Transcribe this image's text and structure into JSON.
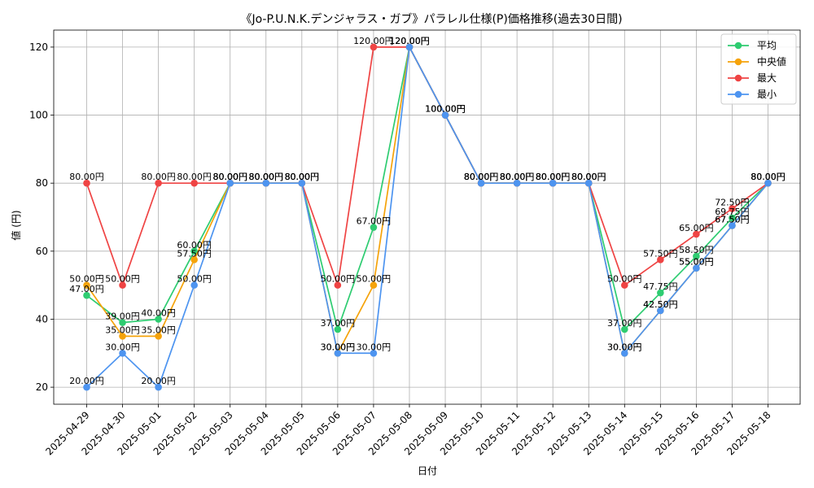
{
  "chart_data": {
    "type": "line",
    "title": "《Jo-P.U.N.K.デンジャラス・ガブ》パラレル仕様(P)価格推移(過去30日間)",
    "xlabel": "日付",
    "ylabel": "値 (円)",
    "ylim": [
      15,
      125
    ],
    "yticks": [
      20,
      40,
      60,
      80,
      100,
      120
    ],
    "grid": true,
    "legend_position": "top-right",
    "label_suffix": "円",
    "categories": [
      "2025-04-29",
      "2025-04-30",
      "2025-05-01",
      "2025-05-02",
      "2025-05-03",
      "2025-05-04",
      "2025-05-05",
      "2025-05-06",
      "2025-05-07",
      "2025-05-08",
      "2025-05-09",
      "2025-05-10",
      "2025-05-11",
      "2025-05-12",
      "2025-05-13",
      "2025-05-14",
      "2025-05-15",
      "2025-05-16",
      "2025-05-17",
      "2025-05-18"
    ],
    "series": [
      {
        "name": "平均",
        "color": "#2ecc71",
        "values": [
          47,
          39,
          40,
          60,
          80,
          80,
          80,
          37,
          67,
          120,
          100,
          80,
          80,
          80,
          80,
          37,
          47.75,
          58.5,
          69.75,
          80
        ],
        "labels": [
          "47.00円",
          "39.00円",
          "40.00円",
          "60.00円",
          "80.00円",
          "80.00円",
          "80.00円",
          "37.00円",
          "67.00円",
          "120.00円",
          "100.00円",
          "80.00円",
          "80.00円",
          "80.00円",
          "80.00円",
          "37.00円",
          "47.75円",
          "58.50円",
          "69.75円",
          "80.00円"
        ]
      },
      {
        "name": "中央値",
        "color": "#f5a30a",
        "values": [
          50,
          35,
          35,
          57.5,
          80,
          80,
          80,
          30,
          50,
          120,
          100,
          80,
          80,
          80,
          80,
          30,
          42.5,
          55,
          67.5,
          80
        ],
        "labels": [
          "50.00円",
          "35.00円",
          "35.00円",
          "57.50円",
          "80.00円",
          "80.00円",
          "80.00円",
          "30.00円",
          "50.00円",
          "120.00円",
          "100.00円",
          "80.00円",
          "80.00円",
          "80.00円",
          "80.00円",
          "30.00円",
          "42.50円",
          "55.00円",
          "67.50円",
          "80.00円"
        ]
      },
      {
        "name": "最大",
        "color": "#ef4444",
        "values": [
          80,
          50,
          80,
          80,
          80,
          80,
          80,
          50,
          120,
          120,
          100,
          80,
          80,
          80,
          80,
          50,
          57.5,
          65,
          72.5,
          80
        ],
        "labels": [
          "80.00円",
          "50.00円",
          "80.00円",
          "80.00円",
          "80.00円",
          "80.00円",
          "80.00円",
          "50.00円",
          "120.00円",
          "120.00円",
          "100.00円",
          "80.00円",
          "80.00円",
          "80.00円",
          "80.00円",
          "50.00円",
          "57.50円",
          "65.00円",
          "72.50円",
          "80.00円"
        ]
      },
      {
        "name": "最小",
        "color": "#4d94f0",
        "values": [
          20,
          30,
          20,
          50,
          80,
          80,
          80,
          30,
          30,
          120,
          100,
          80,
          80,
          80,
          80,
          30,
          42.5,
          55,
          67.5,
          80
        ],
        "labels": [
          "20.00円",
          "30.00円",
          "20.00円",
          "50.00円",
          "80.00円",
          "80.00円",
          "80.00円",
          "30.00円",
          "30.00円",
          "120.00円",
          "100.00円",
          "80.00円",
          "80.00円",
          "80.00円",
          "80.00円",
          "30.00円",
          "42.50円",
          "55.00円",
          "67.50円",
          "80.00円"
        ]
      }
    ]
  }
}
